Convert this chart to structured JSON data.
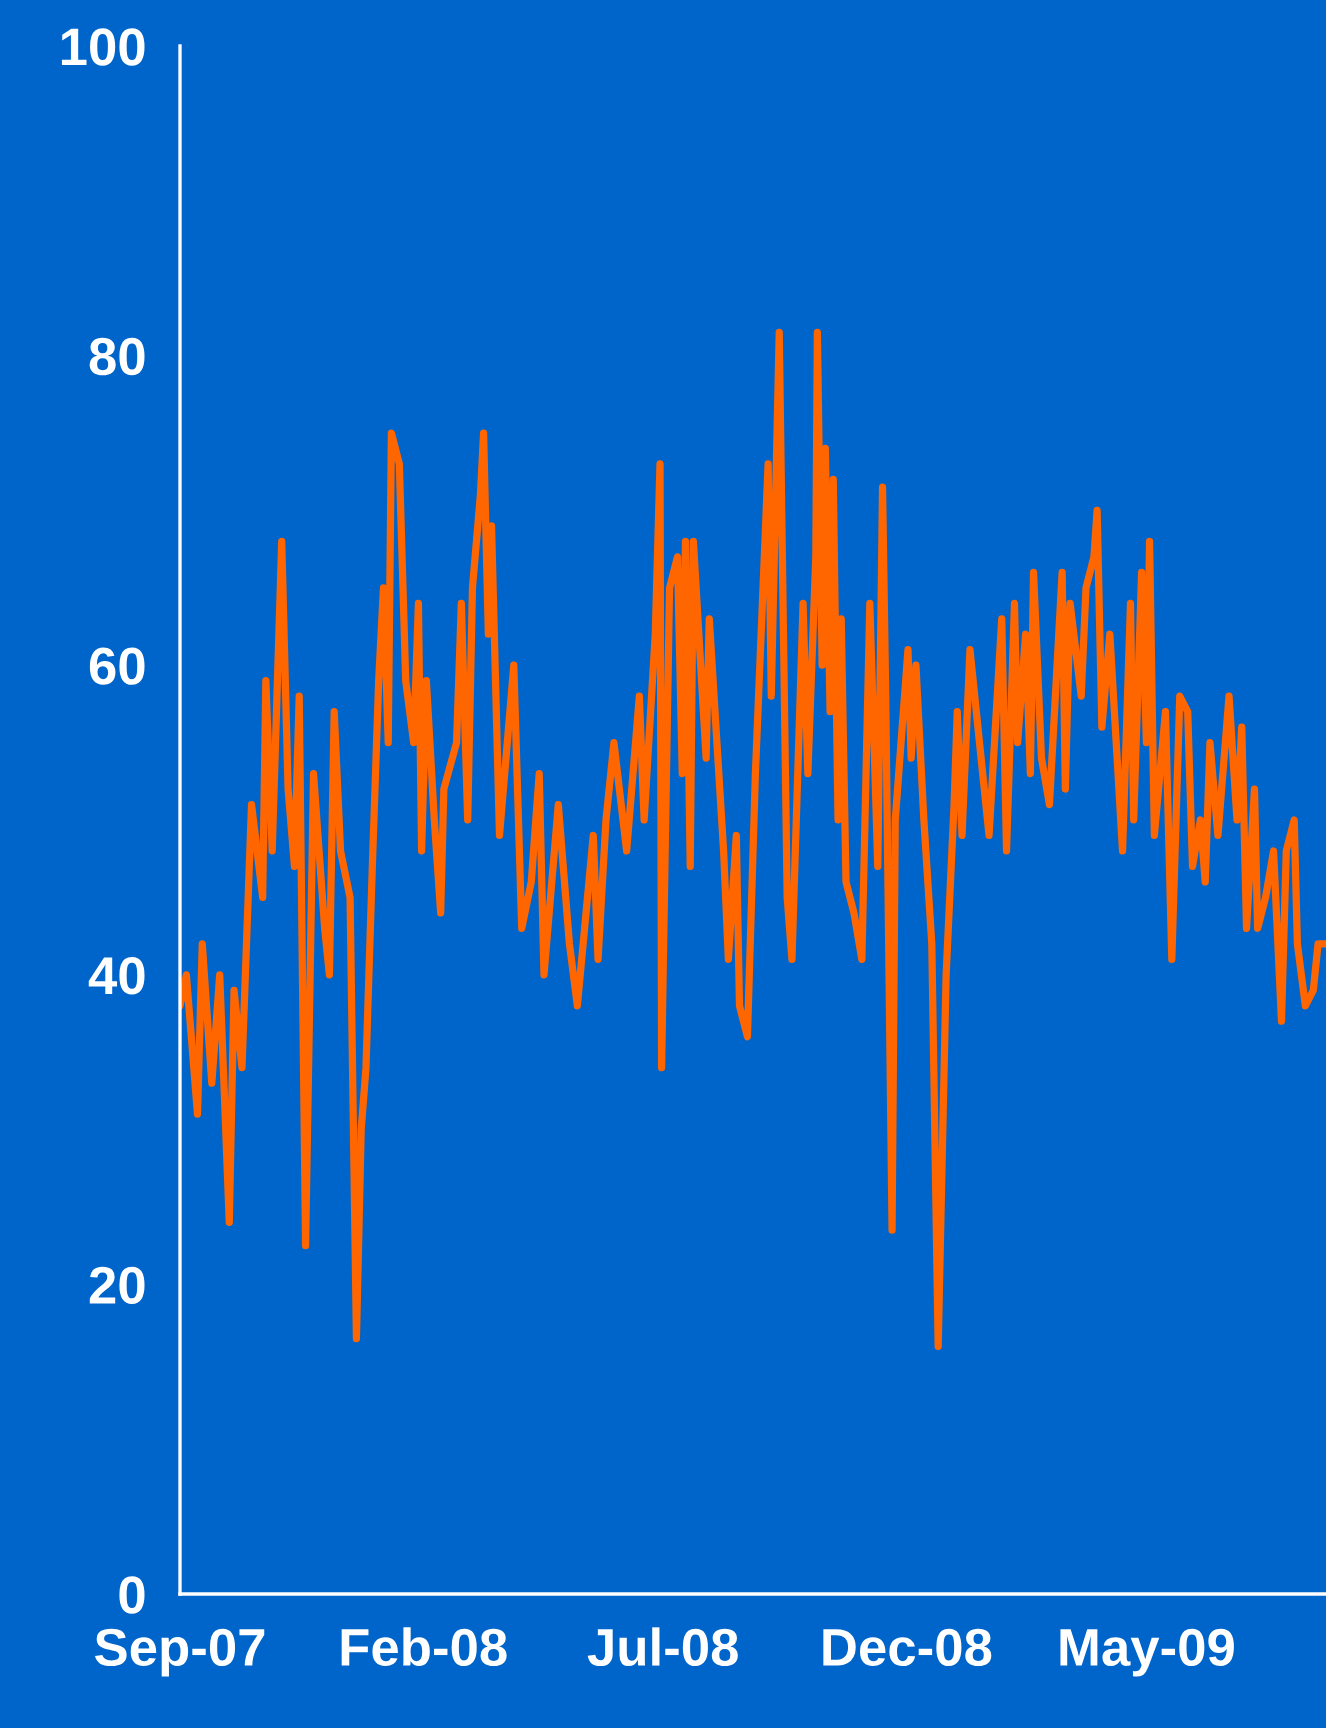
{
  "chart_data": {
    "type": "line",
    "x": [
      "2007-09-01",
      "2007-09-05",
      "2007-09-12",
      "2007-09-15",
      "2007-09-21",
      "2007-09-26",
      "2007-10-02",
      "2007-10-05",
      "2007-10-10",
      "2007-10-16",
      "2007-10-23",
      "2007-10-25",
      "2007-10-29",
      "2007-11-04",
      "2007-11-08",
      "2007-11-12",
      "2007-11-15",
      "2007-11-19",
      "2007-11-24",
      "2007-12-01",
      "2007-12-04",
      "2007-12-07",
      "2007-12-11",
      "2007-12-17",
      "2007-12-21",
      "2007-12-24",
      "2007-12-27",
      "2007-12-31",
      "2008-01-04",
      "2008-01-07",
      "2008-01-10",
      "2008-01-12",
      "2008-01-17",
      "2008-01-21",
      "2008-01-26",
      "2008-01-29",
      "2008-01-31",
      "2008-02-03",
      "2008-02-08",
      "2008-02-12",
      "2008-02-14",
      "2008-02-22",
      "2008-02-25",
      "2008-02-29",
      "2008-03-03",
      "2008-03-08",
      "2008-03-10",
      "2008-03-13",
      "2008-03-15",
      "2008-03-20",
      "2008-03-29",
      "2008-04-03",
      "2008-04-09",
      "2008-04-14",
      "2008-04-17",
      "2008-04-26",
      "2008-05-03",
      "2008-05-08",
      "2008-05-18",
      "2008-05-21",
      "2008-05-26",
      "2008-05-31",
      "2008-06-08",
      "2008-06-16",
      "2008-06-19",
      "2008-06-26",
      "2008-06-29",
      "2008-06-30",
      "2008-07-05",
      "2008-07-10",
      "2008-07-13",
      "2008-07-15",
      "2008-07-18",
      "2008-07-20",
      "2008-07-28",
      "2008-07-30",
      "2008-08-08",
      "2008-08-11",
      "2008-08-16",
      "2008-08-18",
      "2008-08-23",
      "2008-08-28",
      "2008-09-05",
      "2008-09-07",
      "2008-09-12",
      "2008-09-17",
      "2008-09-20",
      "2008-09-27",
      "2008-09-30",
      "2008-10-05",
      "2008-10-06",
      "2008-10-09",
      "2008-10-11",
      "2008-10-14",
      "2008-10-16",
      "2008-10-19",
      "2008-10-21",
      "2008-10-24",
      "2008-10-29",
      "2008-11-03",
      "2008-11-08",
      "2008-11-13",
      "2008-11-16",
      "2008-11-18",
      "2008-11-22",
      "2008-11-24",
      "2008-12-02",
      "2008-12-04",
      "2008-12-07",
      "2008-12-12",
      "2008-12-17",
      "2008-12-21",
      "2008-12-26",
      "2008-12-31",
      "2009-01-02",
      "2009-01-05",
      "2009-01-10",
      "2009-01-17",
      "2009-01-22",
      "2009-01-30",
      "2009-02-02",
      "2009-02-07",
      "2009-02-09",
      "2009-02-14",
      "2009-02-17",
      "2009-02-19",
      "2009-02-24",
      "2009-03-01",
      "2009-03-09",
      "2009-03-11",
      "2009-03-14",
      "2009-03-21",
      "2009-03-24",
      "2009-03-29",
      "2009-03-31",
      "2009-04-03",
      "2009-04-08",
      "2009-04-16",
      "2009-04-21",
      "2009-04-23",
      "2009-04-28",
      "2009-05-01",
      "2009-05-03",
      "2009-05-06",
      "2009-05-13",
      "2009-05-17",
      "2009-05-22",
      "2009-05-27",
      "2009-05-30",
      "2009-06-04",
      "2009-06-07",
      "2009-06-10",
      "2009-06-15",
      "2009-06-22",
      "2009-06-27",
      "2009-06-30",
      "2009-07-03",
      "2009-07-08",
      "2009-07-10",
      "2009-07-15",
      "2009-07-20",
      "2009-07-25",
      "2009-07-28",
      "2009-08-02",
      "2009-08-04",
      "2009-08-09",
      "2009-08-14",
      "2009-08-17",
      "2009-08-22"
    ],
    "series": [
      {
        "color": "#ff6600",
        "values": [
          38,
          40,
          31,
          42,
          33,
          40,
          24,
          39,
          34,
          51,
          45,
          59,
          48,
          68,
          52,
          47,
          58,
          22.5,
          53,
          43,
          40,
          57,
          48,
          45,
          16.5,
          30,
          34,
          47,
          59,
          65,
          55,
          75,
          73,
          59,
          55,
          64,
          48,
          59,
          50,
          44,
          52,
          55,
          64,
          50,
          65,
          71,
          75,
          62,
          69,
          49,
          60,
          43,
          46,
          53,
          40,
          51,
          42,
          38,
          49,
          41,
          50,
          55,
          48,
          58,
          50,
          62,
          73,
          34,
          65,
          67,
          53,
          68,
          47,
          68,
          54,
          63,
          48,
          41,
          49,
          38,
          36,
          53,
          73,
          58,
          81.5,
          45,
          41,
          64,
          53,
          67,
          81.5,
          60,
          74,
          57,
          72,
          50,
          63,
          46,
          44,
          41,
          64,
          47,
          71.5,
          58,
          23.5,
          50,
          61,
          54,
          60,
          50,
          42,
          16,
          40,
          51,
          57,
          49,
          61,
          54,
          49,
          63,
          48,
          64,
          55,
          62,
          53,
          66,
          54,
          51,
          66,
          52,
          64,
          58,
          65,
          67,
          70,
          56,
          62,
          48,
          64,
          50,
          66,
          55,
          68,
          49,
          57,
          41,
          58,
          57,
          47,
          50,
          46,
          55,
          49,
          58,
          50,
          56,
          43,
          52,
          43,
          45,
          48,
          37,
          48,
          50,
          42,
          38,
          39,
          42,
          42
        ]
      }
    ],
    "xlim": [
      "2007-09-01",
      "2009-08-22"
    ],
    "xticks": [
      {
        "value": "2007-09-01",
        "label": "Sep-07"
      },
      {
        "value": "2008-02-01",
        "label": "Feb-08"
      },
      {
        "value": "2008-07-01",
        "label": "Jul-08"
      },
      {
        "value": "2008-12-01",
        "label": "Dec-08"
      },
      {
        "value": "2009-05-01",
        "label": "May-09"
      }
    ],
    "ylim": [
      0,
      100
    ],
    "yticks": [
      0,
      20,
      40,
      60,
      80,
      100
    ]
  }
}
